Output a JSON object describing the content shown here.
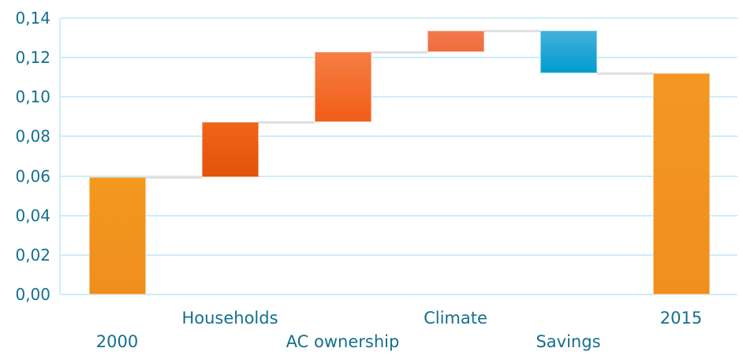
{
  "chart_data": {
    "type": "waterfall",
    "title": "",
    "categories": [
      "2000",
      "Households",
      "AC ownership",
      "Climate",
      "Savings",
      "2015"
    ],
    "series": [
      {
        "label": "2000",
        "start": 0,
        "end": 0.0595,
        "kind": "total",
        "gradient": [
          "#f3981f",
          "#ef8e1d"
        ]
      },
      {
        "label": "Households",
        "start": 0.0595,
        "end": 0.0875,
        "kind": "increase",
        "gradient": [
          "#f06418",
          "#e2530b"
        ]
      },
      {
        "label": "AC ownership",
        "start": 0.0875,
        "end": 0.123,
        "kind": "increase",
        "gradient": [
          "#f57d43",
          "#f25e17"
        ]
      },
      {
        "label": "Climate",
        "start": 0.123,
        "end": 0.1335,
        "kind": "increase",
        "gradient": [
          "#f27950",
          "#ee6d3e"
        ]
      },
      {
        "label": "Savings",
        "start": 0.1335,
        "end": 0.112,
        "kind": "decrease",
        "gradient": [
          "#44afdc",
          "#009dce"
        ]
      },
      {
        "label": "2015",
        "start": 0,
        "end": 0.112,
        "kind": "total",
        "gradient": [
          "#f39722",
          "#f08f1e"
        ]
      }
    ],
    "ylim": [
      0,
      0.14
    ],
    "y_ticks": {
      "values": [
        0,
        0.02,
        0.04,
        0.06,
        0.08,
        0.1,
        0.12,
        0.14
      ],
      "labels": [
        "0,00",
        "0,02",
        "0,04",
        "0,06",
        "0,08",
        "0,10",
        "0,12",
        "0,14"
      ]
    },
    "grid": true,
    "legend": "none",
    "xlabel": "",
    "ylabel": "",
    "x_label_layout": "staggered-two-rows",
    "colors": {
      "label_text": "#136f8e",
      "gridline": "#cdeefb",
      "connector": "#e0e0e0",
      "background": "#ffffff"
    }
  }
}
